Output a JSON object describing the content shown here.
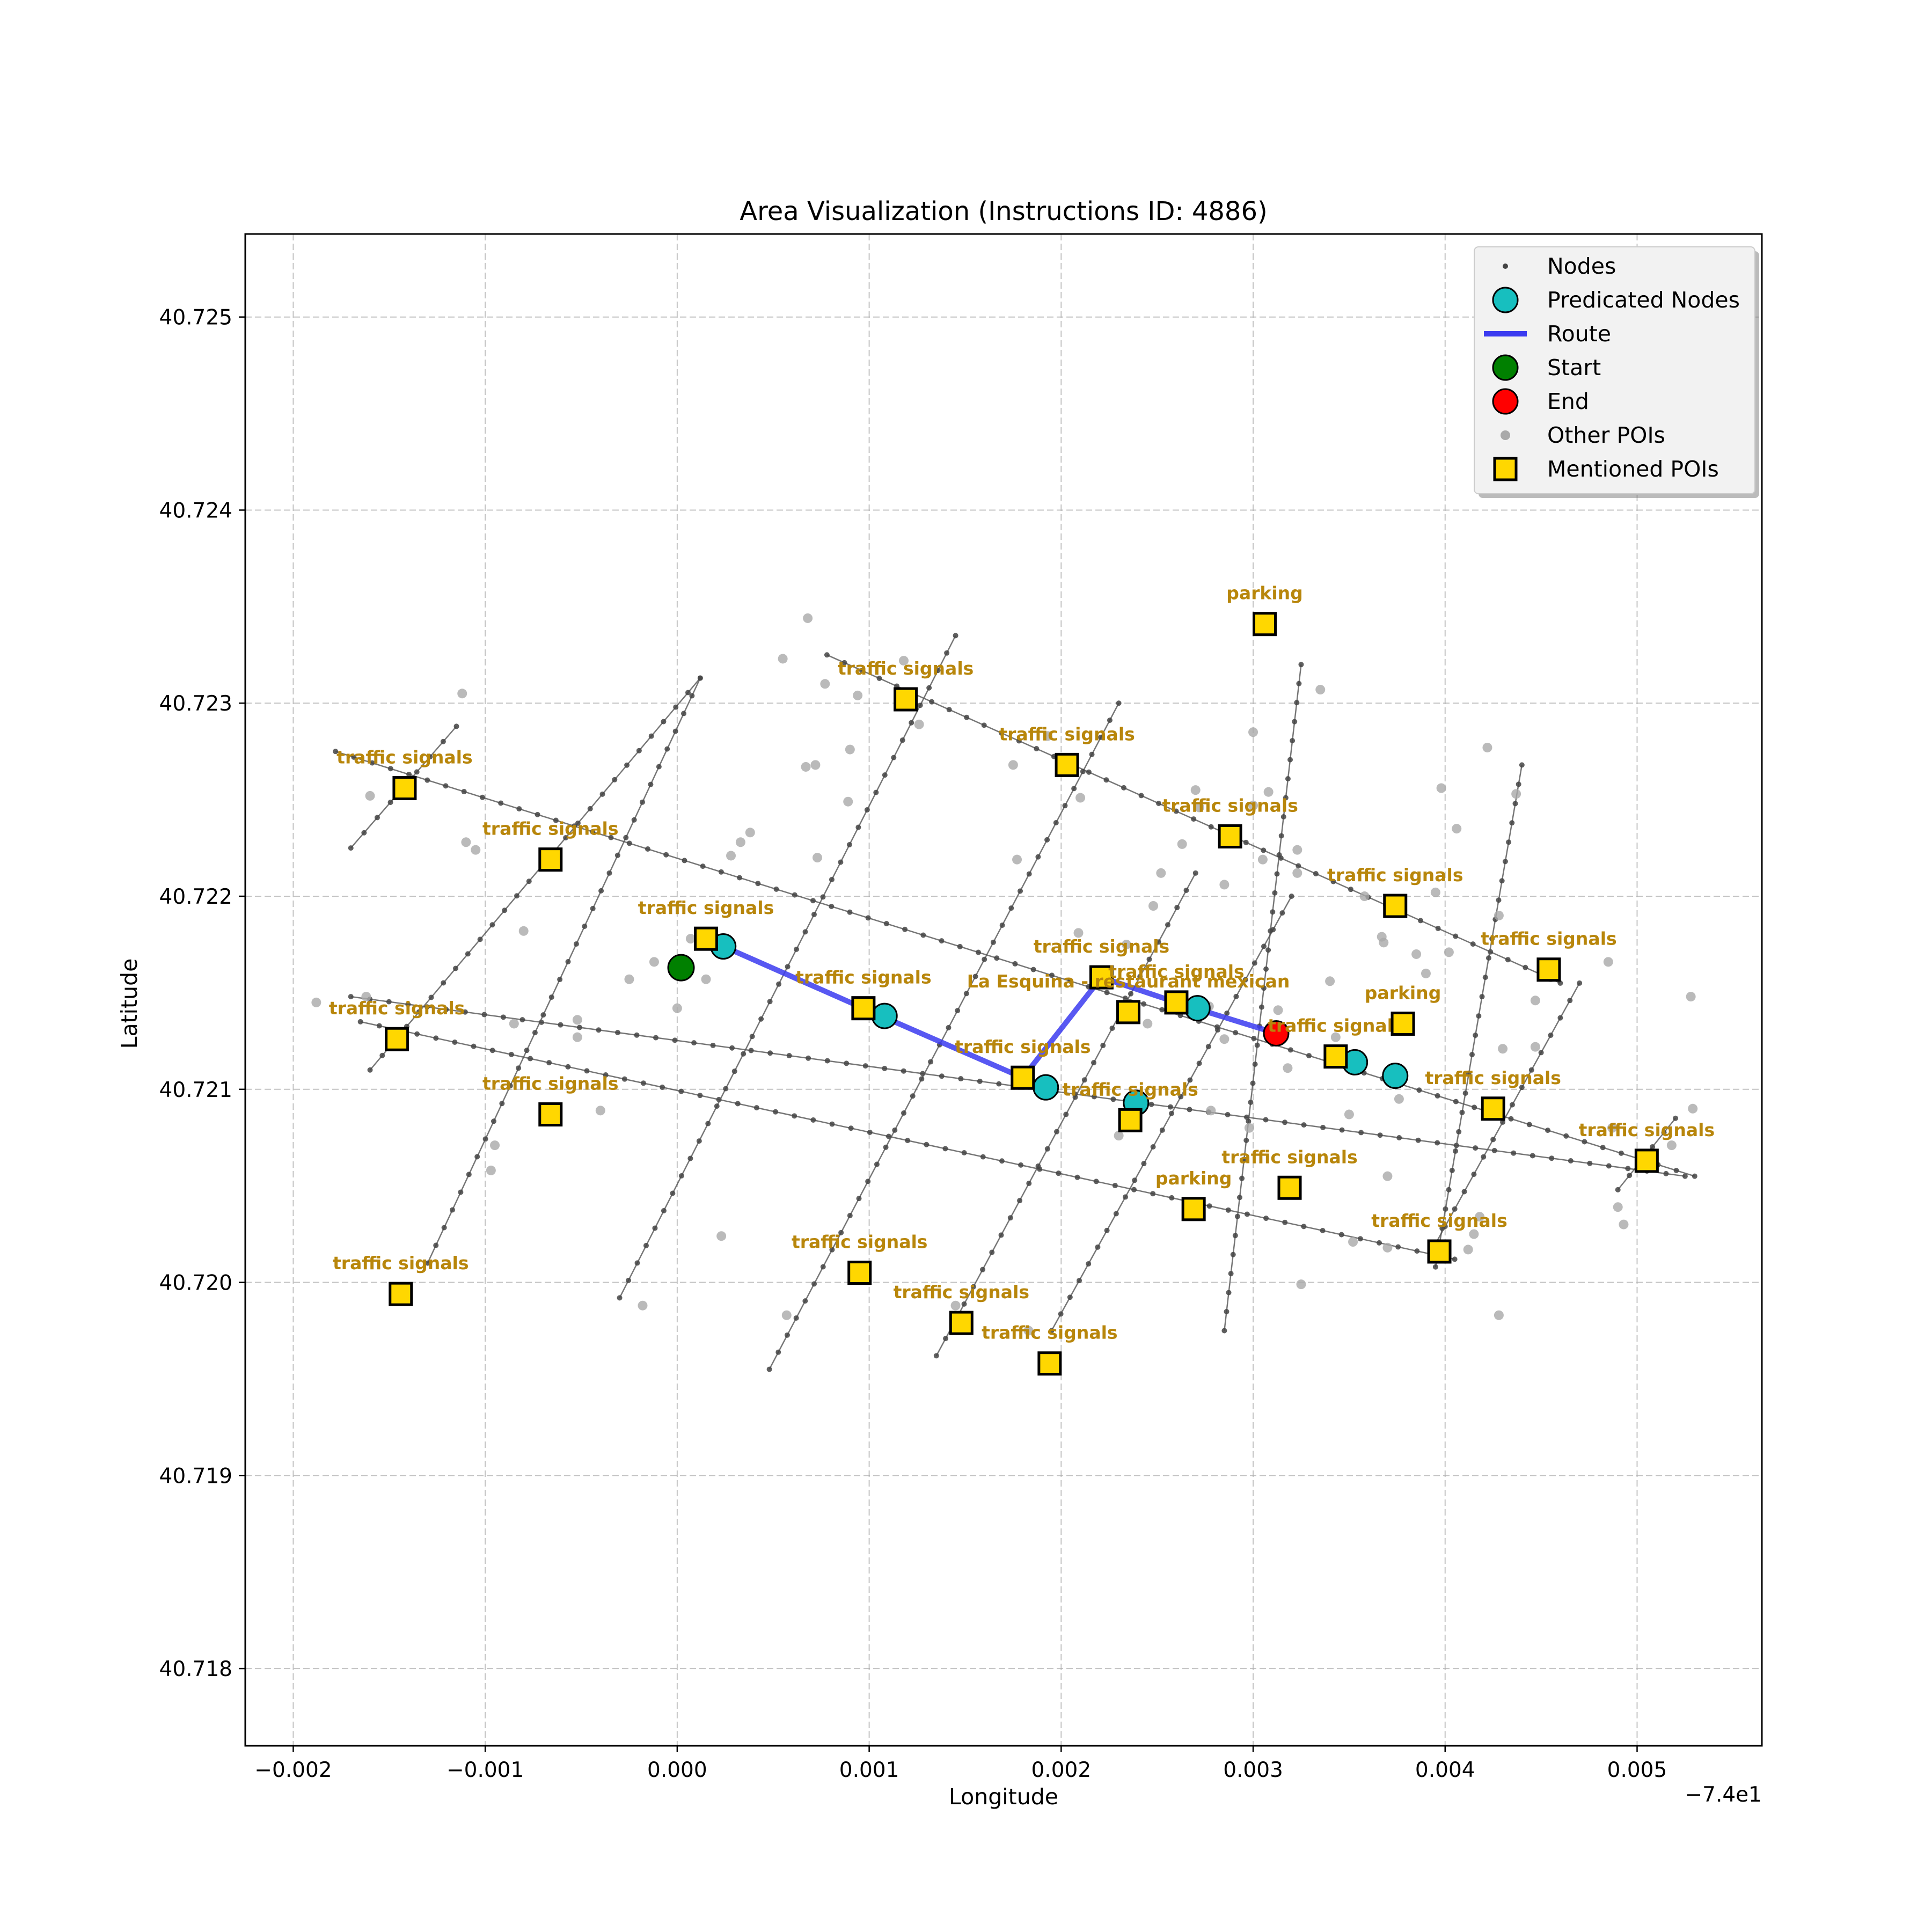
{
  "chart_data": {
    "type": "scatter",
    "title": "Area Visualization (Instructions ID: 4886)",
    "xlabel": "Longitude",
    "ylabel": "Latitude",
    "x_offset_label": "−7.4e1",
    "xlim": [
      -0.00225,
      0.00565
    ],
    "ylim": [
      40.7176,
      40.72543
    ],
    "xticks": [
      -0.002,
      -0.001,
      0.0,
      0.001,
      0.002,
      0.003,
      0.004,
      0.005
    ],
    "xtick_labels": [
      "−0.002",
      "−0.001",
      "0.000",
      "0.001",
      "0.002",
      "0.003",
      "0.004",
      "0.005"
    ],
    "yticks": [
      40.718,
      40.719,
      40.72,
      40.721,
      40.722,
      40.723,
      40.724,
      40.725
    ],
    "ytick_labels": [
      "40.718",
      "40.719",
      "40.720",
      "40.721",
      "40.722",
      "40.723",
      "40.724",
      "40.725"
    ],
    "grid": true,
    "legend_position": "top-right",
    "legend": [
      "Nodes",
      "Predicated Nodes",
      "Route",
      "Start",
      "End",
      "Other POIs",
      "Mentioned POIs"
    ],
    "streets": [
      [
        [
          -0.00178,
          40.72275
        ],
        [
          0.0053,
          40.72055
        ]
      ],
      [
        [
          -0.0017,
          40.72148
        ],
        [
          0.00525,
          40.72055
        ]
      ],
      [
        [
          -0.00165,
          40.72135
        ],
        [
          0.00405,
          40.72012
        ]
      ],
      [
        [
          0.00078,
          40.72325
        ],
        [
          0.0046,
          40.72155
        ]
      ],
      [
        [
          -0.0017,
          40.72225
        ],
        [
          -0.00115,
          40.72288
        ]
      ],
      [
        [
          -0.0016,
          40.7211
        ],
        [
          0.00012,
          40.72313
        ]
      ],
      [
        [
          -0.0013,
          40.7201
        ],
        [
          0.00012,
          40.72313
        ]
      ],
      [
        [
          -0.0003,
          40.71992
        ],
        [
          0.00145,
          40.72335
        ]
      ],
      [
        [
          0.00048,
          40.71955
        ],
        [
          0.0023,
          40.723
        ]
      ],
      [
        [
          0.00135,
          40.71962
        ],
        [
          0.0027,
          40.72212
        ]
      ],
      [
        [
          0.00195,
          40.71975
        ],
        [
          0.0032,
          40.722
        ]
      ],
      [
        [
          0.00285,
          40.71975
        ],
        [
          0.00325,
          40.7232
        ]
      ],
      [
        [
          0.00395,
          40.72008
        ],
        [
          0.0044,
          40.72268
        ]
      ],
      [
        [
          0.00395,
          40.7202
        ],
        [
          0.0047,
          40.72155
        ]
      ],
      [
        [
          0.0049,
          40.72048
        ],
        [
          0.0052,
          40.72085
        ]
      ]
    ],
    "route": [
      [
        0.00015,
        40.72178
      ],
      [
        0.00097,
        40.72142
      ],
      [
        0.0018,
        40.72106
      ],
      [
        0.00221,
        40.72158
      ],
      [
        0.0026,
        40.72145
      ],
      [
        0.00312,
        40.72129
      ]
    ],
    "start": [
      2e-05,
      40.72163
    ],
    "end": [
      0.00312,
      40.72129
    ],
    "predicated_nodes": [
      [
        0.00024,
        40.72174
      ],
      [
        0.00108,
        40.72138
      ],
      [
        0.00192,
        40.72101
      ],
      [
        0.00239,
        40.72093
      ],
      [
        0.00271,
        40.72142
      ],
      [
        0.00353,
        40.72114
      ],
      [
        0.00374,
        40.72107
      ]
    ],
    "other_pois": [
      [
        -0.00188,
        40.72145
      ],
      [
        -0.00162,
        40.72148
      ],
      [
        -0.0016,
        40.72252
      ],
      [
        -0.00112,
        40.72305
      ],
      [
        -0.0011,
        40.72228
      ],
      [
        -0.00105,
        40.72224
      ],
      [
        -0.0008,
        40.72182
      ],
      [
        -0.00085,
        40.72134
      ],
      [
        -0.00095,
        40.72071
      ],
      [
        -0.00097,
        40.72058
      ],
      [
        -0.00052,
        40.72136
      ],
      [
        -0.00052,
        40.72127
      ],
      [
        -0.0004,
        40.72089
      ],
      [
        -0.00025,
        40.72157
      ],
      [
        -0.00018,
        40.71988
      ],
      [
        -0.00012,
        40.72166
      ],
      [
        0.0,
        40.72142
      ],
      [
        7e-05,
        40.72178
      ],
      [
        0.00015,
        40.72157
      ],
      [
        0.00023,
        40.72024
      ],
      [
        0.00028,
        40.72221
      ],
      [
        0.00033,
        40.72228
      ],
      [
        0.00038,
        40.72233
      ],
      [
        0.00055,
        40.72323
      ],
      [
        0.00057,
        40.71983
      ],
      [
        0.00067,
        40.72267
      ],
      [
        0.00068,
        40.72344
      ],
      [
        0.00072,
        40.72268
      ],
      [
        0.00073,
        40.7222
      ],
      [
        0.00077,
        40.7231
      ],
      [
        0.00089,
        40.72249
      ],
      [
        0.0009,
        40.72276
      ],
      [
        0.00094,
        40.72304
      ],
      [
        0.00118,
        40.72322
      ],
      [
        0.00126,
        40.72289
      ],
      [
        0.00145,
        40.71988
      ],
      [
        0.00175,
        40.72268
      ],
      [
        0.00177,
        40.72219
      ],
      [
        0.00183,
        40.71975
      ],
      [
        0.00193,
        40.72283
      ],
      [
        0.002,
        40.72267
      ],
      [
        0.00209,
        40.72181
      ],
      [
        0.0021,
        40.72251
      ],
      [
        0.0023,
        40.72076
      ],
      [
        0.00234,
        40.72175
      ],
      [
        0.00245,
        40.72134
      ],
      [
        0.00248,
        40.72195
      ],
      [
        0.00252,
        40.72212
      ],
      [
        0.00263,
        40.72227
      ],
      [
        0.0027,
        40.72255
      ],
      [
        0.00272,
        40.72246
      ],
      [
        0.00277,
        40.72143
      ],
      [
        0.00278,
        40.72089
      ],
      [
        0.00285,
        40.72206
      ],
      [
        0.00285,
        40.72126
      ],
      [
        0.00298,
        40.7208
      ],
      [
        0.003,
        40.72285
      ],
      [
        0.003,
        40.72247
      ],
      [
        0.00305,
        40.72219
      ],
      [
        0.00308,
        40.72254
      ],
      [
        0.00313,
        40.72141
      ],
      [
        0.00318,
        40.72111
      ],
      [
        0.00323,
        40.72224
      ],
      [
        0.00323,
        40.72212
      ],
      [
        0.00325,
        40.71999
      ],
      [
        0.00335,
        40.72307
      ],
      [
        0.0034,
        40.72156
      ],
      [
        0.00343,
        40.72127
      ],
      [
        0.0035,
        40.72087
      ],
      [
        0.00352,
        40.72021
      ],
      [
        0.00358,
        40.722
      ],
      [
        0.00367,
        40.72179
      ],
      [
        0.00368,
        40.72176
      ],
      [
        0.0037,
        40.72055
      ],
      [
        0.0037,
        40.72018
      ],
      [
        0.00376,
        40.72095
      ],
      [
        0.00385,
        40.7217
      ],
      [
        0.0039,
        40.7216
      ],
      [
        0.00395,
        40.72202
      ],
      [
        0.00398,
        40.72256
      ],
      [
        0.00402,
        40.72171
      ],
      [
        0.00406,
        40.72235
      ],
      [
        0.00412,
        40.72017
      ],
      [
        0.00415,
        40.72025
      ],
      [
        0.00418,
        40.72034
      ],
      [
        0.00422,
        40.72277
      ],
      [
        0.00428,
        40.71983
      ],
      [
        0.00428,
        40.7219
      ],
      [
        0.0043,
        40.72121
      ],
      [
        0.00437,
        40.72253
      ],
      [
        0.00447,
        40.72146
      ],
      [
        0.00447,
        40.72122
      ],
      [
        0.00455,
        40.72158
      ],
      [
        0.00485,
        40.72166
      ],
      [
        0.00487,
        40.7208
      ],
      [
        0.0049,
        40.72039
      ],
      [
        0.00493,
        40.7203
      ],
      [
        0.00518,
        40.72071
      ],
      [
        0.00529,
        40.7209
      ],
      [
        0.00528,
        40.72148
      ]
    ],
    "mentioned_pois": [
      {
        "x": -0.00142,
        "y": 40.72256,
        "label": "traffic signals"
      },
      {
        "x": -0.00066,
        "y": 40.72219,
        "label": "traffic signals"
      },
      {
        "x": 0.00015,
        "y": 40.72178,
        "label": "traffic signals"
      },
      {
        "x": -0.00146,
        "y": 40.72126,
        "label": "traffic signals"
      },
      {
        "x": -0.00066,
        "y": 40.72087,
        "label": "traffic signals"
      },
      {
        "x": 0.00097,
        "y": 40.72142,
        "label": "traffic signals"
      },
      {
        "x": 0.00119,
        "y": 40.72302,
        "label": "traffic signals"
      },
      {
        "x": 0.00203,
        "y": 40.72268,
        "label": "traffic signals"
      },
      {
        "x": 0.00288,
        "y": 40.72231,
        "label": "traffic signals"
      },
      {
        "x": 0.00374,
        "y": 40.72195,
        "label": "traffic signals"
      },
      {
        "x": 0.00454,
        "y": 40.72162,
        "label": "traffic signals"
      },
      {
        "x": 0.0018,
        "y": 40.72106,
        "label": "traffic signals"
      },
      {
        "x": 0.00221,
        "y": 40.72158,
        "label": "traffic signals"
      },
      {
        "x": 0.00235,
        "y": 40.7214,
        "label": "La Esquina - restaurant mexican"
      },
      {
        "x": 0.0026,
        "y": 40.72145,
        "label": "traffic signals"
      },
      {
        "x": 0.00236,
        "y": 40.72084,
        "label": "traffic signals"
      },
      {
        "x": 0.00343,
        "y": 40.72117,
        "label": "traffic signals"
      },
      {
        "x": 0.00378,
        "y": 40.72134,
        "label": "parking"
      },
      {
        "x": 0.00425,
        "y": 40.7209,
        "label": "traffic signals"
      },
      {
        "x": 0.00505,
        "y": 40.72063,
        "label": "traffic signals"
      },
      {
        "x": 0.00319,
        "y": 40.72049,
        "label": "traffic signals"
      },
      {
        "x": 0.00269,
        "y": 40.72038,
        "label": "parking"
      },
      {
        "x": 0.00397,
        "y": 40.72016,
        "label": "traffic signals"
      },
      {
        "x": 0.00095,
        "y": 40.72005,
        "label": "traffic signals"
      },
      {
        "x": 0.00148,
        "y": 40.71979,
        "label": "traffic signals"
      },
      {
        "x": 0.00194,
        "y": 40.71958,
        "label": "traffic signals"
      },
      {
        "x": -0.00144,
        "y": 40.71994,
        "label": "traffic signals"
      },
      {
        "x": 0.00306,
        "y": 40.72341,
        "label": "parking"
      }
    ],
    "colors": {
      "route": "#3b3bf0",
      "predicated": "#17bfbf",
      "start": "#008000",
      "end": "#ff0000",
      "poi_fill": "#ffd700",
      "poi_label": "#b8860b",
      "other_poi": "#a9a9a9",
      "node": "#444444",
      "street": "#555555"
    }
  }
}
